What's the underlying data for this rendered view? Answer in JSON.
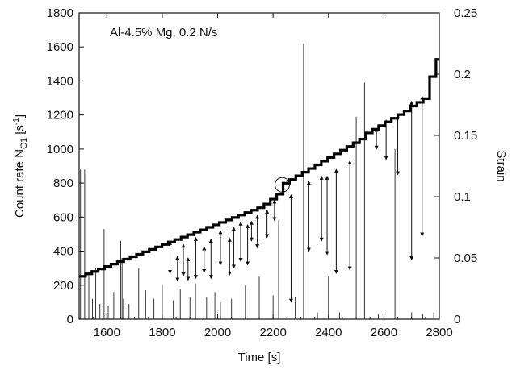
{
  "chart_data": {
    "type": "line",
    "annotation": "Al-4.5% Mg, 0.2 N/s",
    "xlabel": "Time [s]",
    "ylabel_left": {
      "main": "Count rate N",
      "sub": "C1",
      "unit_open": " [s",
      "sup": "-1",
      "unit_close": "]"
    },
    "ylabel_right": "Strain",
    "xlim": [
      1500,
      2800
    ],
    "ylim_left": [
      0,
      1800
    ],
    "ylim_right": [
      0,
      0.25
    ],
    "xticks": [
      1600,
      1800,
      2000,
      2200,
      2400,
      2600,
      2800
    ],
    "xtick_labels": [
      "1600",
      "1800",
      "2000",
      "2200",
      "2400",
      "2600",
      "2800"
    ],
    "yticks_left": [
      0,
      200,
      400,
      600,
      800,
      1000,
      1200,
      1400,
      1600,
      1800
    ],
    "ytick_labels_left": [
      "0",
      "200",
      "400",
      "600",
      "800",
      "1000",
      "1200",
      "1400",
      "1600",
      "1800"
    ],
    "yticks_right": [
      0,
      0.05,
      0.1,
      0.15,
      0.2,
      0.25
    ],
    "ytick_labels_right": [
      "0",
      "0.05",
      "0.1",
      "0.15",
      "0.2",
      "0.25"
    ],
    "grid": false,
    "series": [
      {
        "axis": "right",
        "style": "thick-staircase",
        "x": [
          1500,
          1523,
          1546,
          1569,
          1592,
          1615,
          1638,
          1661,
          1684,
          1707,
          1730,
          1753,
          1776,
          1799,
          1822,
          1845,
          1868,
          1891,
          1914,
          1937,
          1960,
          1983,
          2006,
          2029,
          2052,
          2075,
          2098,
          2121,
          2144,
          2167,
          2190,
          2213,
          2236,
          2259,
          2282,
          2305,
          2328,
          2351,
          2374,
          2397,
          2420,
          2443,
          2466,
          2489,
          2512,
          2535,
          2558,
          2581,
          2604,
          2627,
          2650,
          2673,
          2696,
          2719,
          2742,
          2765,
          2788,
          2800
        ],
        "y": [
          0.035,
          0.037,
          0.039,
          0.041,
          0.043,
          0.045,
          0.047,
          0.049,
          0.051,
          0.053,
          0.055,
          0.057,
          0.059,
          0.061,
          0.063,
          0.065,
          0.067,
          0.069,
          0.071,
          0.073,
          0.075,
          0.077,
          0.079,
          0.081,
          0.083,
          0.085,
          0.087,
          0.089,
          0.091,
          0.094,
          0.098,
          0.102,
          0.111,
          0.114,
          0.117,
          0.12,
          0.123,
          0.126,
          0.129,
          0.132,
          0.135,
          0.138,
          0.141,
          0.144,
          0.147,
          0.152,
          0.155,
          0.158,
          0.161,
          0.164,
          0.167,
          0.17,
          0.174,
          0.177,
          0.18,
          0.198,
          0.212,
          0.212
        ]
      },
      {
        "axis": "left",
        "style": "thin-spikes",
        "x": [
          1505,
          1510,
          1520,
          1535,
          1548,
          1560,
          1575,
          1590,
          1605,
          1625,
          1650,
          1655,
          1660,
          1680,
          1715,
          1740,
          1770,
          1800,
          1840,
          1865,
          1900,
          1920,
          1960,
          1990,
          2010,
          2050,
          2100,
          2150,
          2200,
          2220,
          2280,
          2310,
          2360,
          2400,
          2440,
          2500,
          2530,
          2580,
          2640,
          2700,
          2740,
          2780
        ],
        "y": [
          880,
          880,
          880,
          270,
          120,
          300,
          90,
          530,
          80,
          160,
          460,
          360,
          120,
          90,
          300,
          170,
          120,
          200,
          110,
          180,
          130,
          210,
          130,
          160,
          100,
          120,
          200,
          250,
          140,
          580,
          130,
          1620,
          40,
          250,
          40,
          1190,
          1390,
          30,
          1000,
          40,
          30,
          40
        ]
      }
    ],
    "arrows": [
      {
        "x": 1828,
        "y_low": 270,
        "y_high": 455
      },
      {
        "x": 1855,
        "y_low": 225,
        "y_high": 370
      },
      {
        "x": 1876,
        "y_low": 255,
        "y_high": 440
      },
      {
        "x": 1893,
        "y_low": 230,
        "y_high": 360
      },
      {
        "x": 1921,
        "y_low": 240,
        "y_high": 480
      },
      {
        "x": 1951,
        "y_low": 275,
        "y_high": 425
      },
      {
        "x": 1976,
        "y_low": 240,
        "y_high": 470
      },
      {
        "x": 2010,
        "y_low": 320,
        "y_high": 520
      },
      {
        "x": 2043,
        "y_low": 260,
        "y_high": 475
      },
      {
        "x": 2058,
        "y_low": 300,
        "y_high": 540
      },
      {
        "x": 2083,
        "y_low": 340,
        "y_high": 570
      },
      {
        "x": 2108,
        "y_low": 320,
        "y_high": 555
      },
      {
        "x": 2122,
        "y_low": 460,
        "y_high": 575
      },
      {
        "x": 2143,
        "y_low": 420,
        "y_high": 610
      },
      {
        "x": 2178,
        "y_low": 480,
        "y_high": 640
      },
      {
        "x": 2205,
        "y_low": 580,
        "y_high": 700
      },
      {
        "x": 2265,
        "y_low": 100,
        "y_high": 730
      },
      {
        "x": 2329,
        "y_low": 400,
        "y_high": 810
      },
      {
        "x": 2375,
        "y_low": 460,
        "y_high": 840
      },
      {
        "x": 2395,
        "y_low": 380,
        "y_high": 840
      },
      {
        "x": 2428,
        "y_low": 270,
        "y_high": 880
      },
      {
        "x": 2477,
        "y_low": 290,
        "y_high": 930
      },
      {
        "x": 2573,
        "y_low": 1000,
        "y_high": 1120
      },
      {
        "x": 2608,
        "y_low": 940,
        "y_high": 1170
      },
      {
        "x": 2650,
        "y_low": 850,
        "y_high": 1200
      },
      {
        "x": 2700,
        "y_low": 350,
        "y_high": 1280
      },
      {
        "x": 2738,
        "y_low": 490,
        "y_high": 1310
      }
    ],
    "circle_marker": {
      "x": 2233,
      "y": 790
    }
  }
}
